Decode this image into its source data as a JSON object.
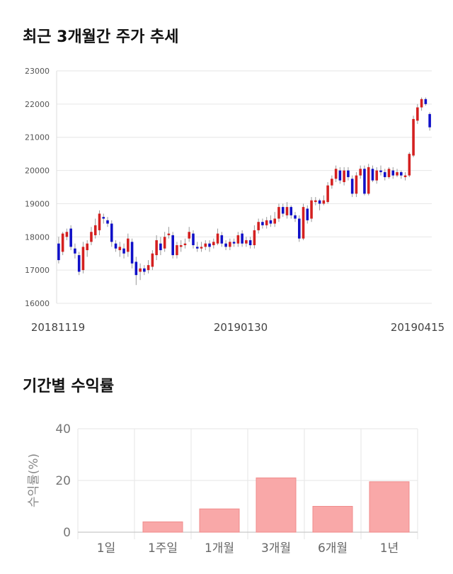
{
  "sections": {
    "price_title": "최근 3개월간 주가 추세",
    "return_title": "기간별 수익률"
  },
  "colors": {
    "up": "#d42020",
    "down": "#1010c8",
    "bar": "#f9a8a8",
    "grid": "#e6e6e6"
  },
  "chart_data": [
    {
      "type": "candlestick",
      "title": "최근 3개월간 주가 추세",
      "ylim": [
        16000,
        23000
      ],
      "yticks": [
        "16000",
        "17000",
        "18000",
        "19000",
        "20000",
        "21000",
        "22000",
        "23000"
      ],
      "xticks": [
        "20181119",
        "20190130",
        "20190415"
      ],
      "grid": true,
      "candles": [
        [
          17800,
          17300,
          18000,
          17200
        ],
        [
          17550,
          18100,
          18150,
          17450
        ],
        [
          18000,
          18150,
          18250,
          17900
        ],
        [
          18250,
          17700,
          18350,
          17600
        ],
        [
          17650,
          17500,
          17800,
          17350
        ],
        [
          17450,
          16950,
          17550,
          16850
        ],
        [
          17000,
          17700,
          17850,
          16900
        ],
        [
          17600,
          17800,
          17900,
          17400
        ],
        [
          17850,
          18150,
          18300,
          17750
        ],
        [
          18050,
          18350,
          18550,
          17950
        ],
        [
          18200,
          18700,
          18800,
          18050
        ],
        [
          18600,
          18550,
          18700,
          18400
        ],
        [
          18500,
          18400,
          18600,
          18300
        ],
        [
          18400,
          17850,
          18500,
          17700
        ],
        [
          17800,
          17650,
          17900,
          17550
        ],
        [
          17600,
          17700,
          17850,
          17400
        ],
        [
          17650,
          17500,
          17800,
          17350
        ],
        [
          17550,
          17950,
          18100,
          17400
        ],
        [
          17850,
          17200,
          17950,
          17050
        ],
        [
          17250,
          16850,
          17400,
          16550
        ],
        [
          16950,
          17050,
          17200,
          16700
        ],
        [
          17050,
          16950,
          17150,
          16850
        ],
        [
          17000,
          17150,
          17300,
          16900
        ],
        [
          17100,
          17500,
          17600,
          17000
        ],
        [
          17450,
          17900,
          18050,
          17300
        ],
        [
          17800,
          17600,
          18000,
          17450
        ],
        [
          17650,
          18000,
          18150,
          17550
        ],
        [
          18050,
          18100,
          18300,
          17950
        ],
        [
          18050,
          17450,
          18150,
          17350
        ],
        [
          17450,
          17750,
          17850,
          17350
        ],
        [
          17700,
          17750,
          17900,
          17550
        ],
        [
          17750,
          17800,
          17950,
          17650
        ],
        [
          17950,
          18150,
          18300,
          17850
        ],
        [
          18100,
          17750,
          18200,
          17650
        ],
        [
          17700,
          17650,
          17850,
          17550
        ],
        [
          17650,
          17700,
          17850,
          17550
        ],
        [
          17700,
          17800,
          17900,
          17600
        ],
        [
          17800,
          17700,
          17900,
          17550
        ],
        [
          17750,
          17850,
          17950,
          17650
        ],
        [
          17800,
          18100,
          18250,
          17750
        ],
        [
          18050,
          17800,
          18150,
          17700
        ],
        [
          17800,
          17700,
          17900,
          17600
        ],
        [
          17700,
          17850,
          17950,
          17600
        ],
        [
          17850,
          17800,
          17950,
          17700
        ],
        [
          17800,
          18050,
          18150,
          17700
        ],
        [
          18100,
          17800,
          18200,
          17700
        ],
        [
          17800,
          17900,
          18000,
          17700
        ],
        [
          17900,
          17750,
          18000,
          17650
        ],
        [
          17750,
          18200,
          18350,
          17650
        ],
        [
          18200,
          18450,
          18550,
          18100
        ],
        [
          18450,
          18350,
          18550,
          18250
        ],
        [
          18350,
          18500,
          18600,
          18250
        ],
        [
          18500,
          18400,
          18650,
          18300
        ],
        [
          18400,
          18550,
          18750,
          18300
        ],
        [
          18550,
          18900,
          19000,
          18450
        ],
        [
          18900,
          18700,
          19000,
          18600
        ],
        [
          18650,
          18900,
          19050,
          18550
        ],
        [
          18900,
          18650,
          18950,
          18550
        ],
        [
          18650,
          18550,
          18750,
          18450
        ],
        [
          18550,
          17950,
          18650,
          17850
        ],
        [
          17950,
          18900,
          19000,
          17900
        ],
        [
          18850,
          18500,
          18950,
          18400
        ],
        [
          18550,
          19100,
          19200,
          18450
        ],
        [
          19050,
          19100,
          19200,
          18950
        ],
        [
          19100,
          19000,
          19150,
          18800
        ],
        [
          19000,
          19100,
          19250,
          18950
        ],
        [
          19050,
          19550,
          19650,
          19000
        ],
        [
          19550,
          19750,
          19850,
          19450
        ],
        [
          19750,
          20050,
          20150,
          19650
        ],
        [
          20000,
          19700,
          20100,
          19600
        ],
        [
          19650,
          20000,
          20100,
          19550
        ],
        [
          20000,
          19800,
          20100,
          19700
        ],
        [
          19750,
          19300,
          19850,
          19200
        ],
        [
          19300,
          19850,
          19950,
          19200
        ],
        [
          19850,
          20050,
          20150,
          19750
        ],
        [
          20050,
          19300,
          20150,
          19250
        ],
        [
          19300,
          20100,
          20200,
          19250
        ],
        [
          20050,
          19700,
          20150,
          19650
        ],
        [
          19700,
          20000,
          20100,
          19600
        ],
        [
          20000,
          19950,
          20150,
          19850
        ],
        [
          19950,
          19800,
          20050,
          19700
        ],
        [
          19800,
          20050,
          20100,
          19750
        ],
        [
          20000,
          19850,
          20100,
          19750
        ],
        [
          19850,
          19950,
          20050,
          19800
        ],
        [
          19950,
          19850,
          20000,
          19750
        ],
        [
          19800,
          19850,
          19950,
          19700
        ],
        [
          19850,
          20500,
          20550,
          19800
        ],
        [
          20450,
          21550,
          21650,
          20400
        ],
        [
          21500,
          21900,
          22000,
          21400
        ],
        [
          21900,
          22150,
          22200,
          21800
        ],
        [
          22150,
          22000,
          22200,
          21950
        ],
        [
          21700,
          21300,
          21750,
          21200
        ]
      ]
    },
    {
      "type": "bar",
      "title": "기간별 수익률",
      "categories": [
        "1일",
        "1주일",
        "1개월",
        "3개월",
        "6개월",
        "1년"
      ],
      "values": [
        0,
        4,
        9,
        21,
        10,
        19.5
      ],
      "ylabel": "수익률(%)",
      "ylim": [
        0,
        40
      ],
      "yticks": [
        "0",
        "20",
        "40"
      ],
      "grid": true
    }
  ]
}
